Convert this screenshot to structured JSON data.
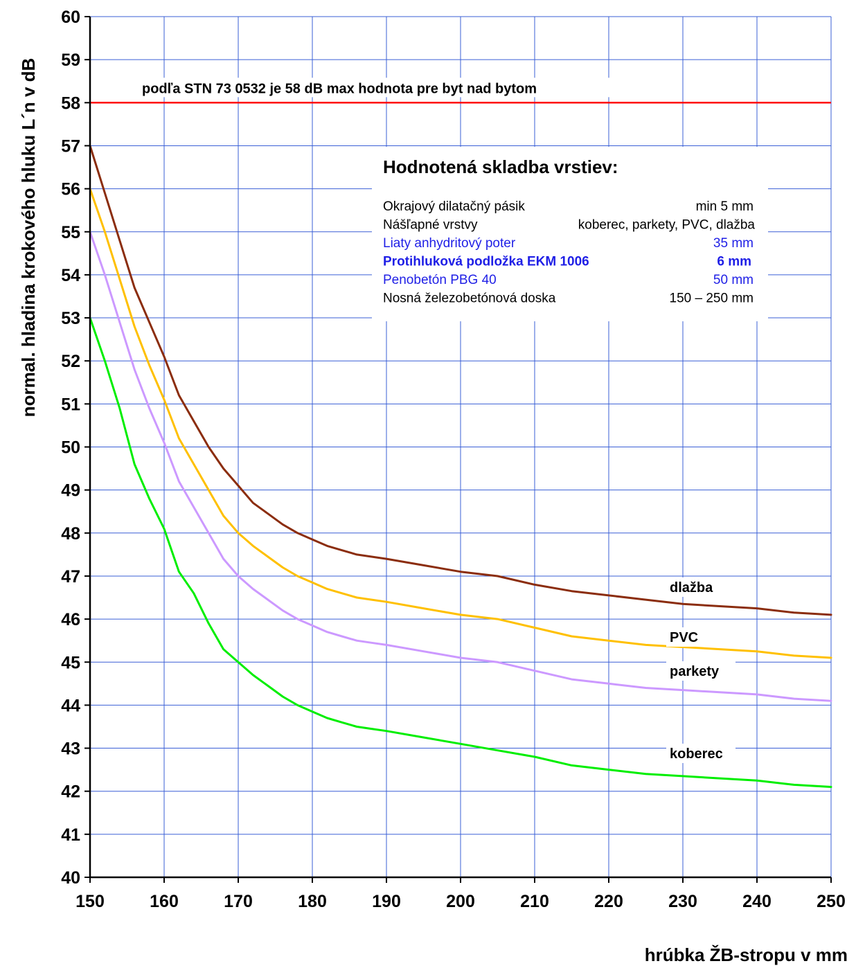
{
  "chart_data": {
    "type": "line",
    "title": "",
    "xlabel": "hrúbka ŽB-stropu v mm",
    "ylabel": "normal. hladina krokového hluku L´n v dB",
    "xlim": [
      150,
      250
    ],
    "ylim": [
      40,
      60
    ],
    "x_ticks": [
      150,
      160,
      170,
      180,
      190,
      200,
      210,
      220,
      230,
      240,
      250
    ],
    "y_ticks": [
      40,
      41,
      42,
      43,
      44,
      45,
      46,
      47,
      48,
      49,
      50,
      51,
      52,
      53,
      54,
      55,
      56,
      57,
      58,
      59,
      60
    ],
    "grid": true,
    "x": [
      150,
      152,
      154,
      156,
      158,
      160,
      162,
      164,
      166,
      168,
      170,
      172,
      174,
      176,
      178,
      180,
      182,
      184,
      186,
      188,
      190,
      195,
      200,
      205,
      210,
      215,
      220,
      225,
      230,
      235,
      240,
      245,
      250
    ],
    "series": [
      {
        "name": "dlažba",
        "color": "#8b2d0e",
        "values": [
          57.0,
          55.9,
          54.8,
          53.7,
          52.9,
          52.1,
          51.2,
          50.6,
          50.0,
          49.5,
          49.1,
          48.7,
          48.45,
          48.2,
          48.0,
          47.85,
          47.7,
          47.6,
          47.5,
          47.45,
          47.4,
          47.25,
          47.1,
          47.0,
          46.8,
          46.65,
          46.55,
          46.45,
          46.35,
          46.3,
          46.25,
          46.15,
          46.1
        ]
      },
      {
        "name": "PVC",
        "color": "#ffc000",
        "values": [
          56.0,
          55.0,
          53.9,
          52.8,
          51.9,
          51.1,
          50.2,
          49.6,
          49.0,
          48.4,
          48.0,
          47.7,
          47.45,
          47.2,
          47.0,
          46.85,
          46.7,
          46.6,
          46.5,
          46.45,
          46.4,
          46.25,
          46.1,
          46.0,
          45.8,
          45.6,
          45.5,
          45.4,
          45.35,
          45.3,
          45.25,
          45.15,
          45.1
        ]
      },
      {
        "name": "parkety",
        "color": "#cc99ff",
        "values": [
          55.0,
          54.0,
          52.9,
          51.8,
          50.9,
          50.1,
          49.2,
          48.6,
          48.0,
          47.4,
          47.0,
          46.7,
          46.45,
          46.2,
          46.0,
          45.85,
          45.7,
          45.6,
          45.5,
          45.45,
          45.4,
          45.25,
          45.1,
          45.0,
          44.8,
          44.6,
          44.5,
          44.4,
          44.35,
          44.3,
          44.25,
          44.15,
          44.1
        ]
      },
      {
        "name": "koberec",
        "color": "#00ee00",
        "values": [
          53.0,
          52.0,
          50.9,
          49.6,
          48.8,
          48.1,
          47.1,
          46.6,
          45.9,
          45.3,
          45.0,
          44.7,
          44.45,
          44.2,
          44.0,
          43.85,
          43.7,
          43.6,
          43.5,
          43.45,
          43.4,
          43.25,
          43.1,
          42.95,
          42.8,
          42.6,
          42.5,
          42.4,
          42.35,
          42.3,
          42.25,
          42.15,
          42.1
        ]
      }
    ],
    "reference_line": {
      "value": 58,
      "color": "#ff0000",
      "label": "podľa STN 73 0532  je  58 dB max hodnota pre byt nad bytom"
    },
    "annotation_box": {
      "title": "Hodnotená skladba vrstiev:",
      "rows": [
        {
          "label": "Okrajový dilatačný pásik",
          "value": "min 5 mm",
          "color": "#000000",
          "bold": false
        },
        {
          "label": "Nášľapné vrstvy",
          "value": "koberec, parkety, PVC, dlažba",
          "color": "#000000",
          "bold": false
        },
        {
          "label": "Liaty anhydritový poter",
          "value": "35 mm",
          "color": "#1f1fe6",
          "bold": false
        },
        {
          "label": "Protihluková podložka EKM 1006",
          "value": "6 mm",
          "color": "#1f1fe6",
          "bold": true
        },
        {
          "label": "Penobetón PBG 40",
          "value": "50 mm",
          "color": "#1f1fe6",
          "bold": false
        },
        {
          "label": "Nosná železobetónová doska",
          "value": "150 – 250 mm",
          "color": "#000000",
          "bold": false
        }
      ]
    },
    "grid_color": "#3a5fd6",
    "axis_color": "#000000"
  }
}
